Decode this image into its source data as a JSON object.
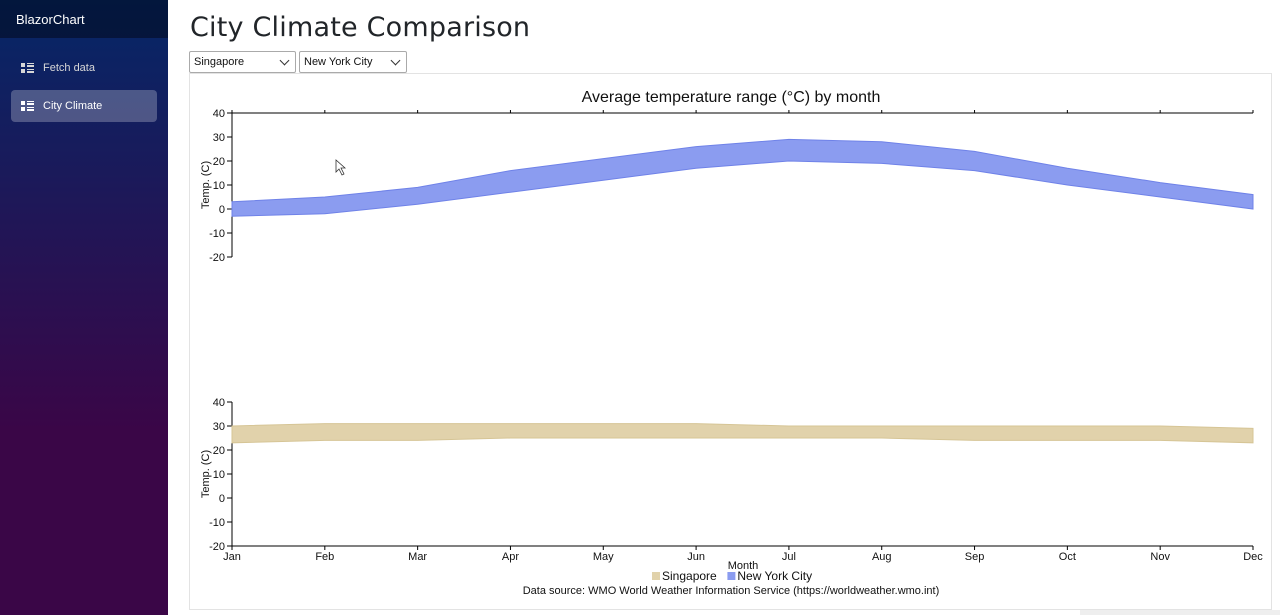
{
  "sidebar": {
    "brand": "BlazorChart",
    "items": [
      {
        "label": "Fetch data",
        "active": false
      },
      {
        "label": "City Climate",
        "active": true
      }
    ]
  },
  "main": {
    "title": "City Climate Comparison",
    "selects": [
      {
        "value": "Singapore"
      },
      {
        "value": "New York City"
      }
    ]
  },
  "chart_data": {
    "type": "area",
    "title": "Average temperature range (°C) by month",
    "xlabel": "Month",
    "ylabel": "Temp. (C)",
    "categories": [
      "Jan",
      "Feb",
      "Mar",
      "Apr",
      "May",
      "Jun",
      "Jul",
      "Aug",
      "Sep",
      "Oct",
      "Nov",
      "Dec"
    ],
    "ylim": [
      -20,
      40
    ],
    "yticks": [
      40,
      30,
      20,
      10,
      0,
      -10,
      -20
    ],
    "grid": false,
    "legend": "bottom-center",
    "source": "Data source: WMO World Weather Information Service (https://worldweather.wmo.int)",
    "series": [
      {
        "name": "New York City",
        "color": "#8b9cf0",
        "stroke": "#6f82e8",
        "low": [
          -3,
          -2,
          2,
          7,
          12,
          17,
          20,
          19,
          16,
          10,
          5,
          0
        ],
        "high": [
          3,
          5,
          9,
          16,
          21,
          26,
          29,
          28,
          24,
          17,
          11,
          6
        ]
      },
      {
        "name": "Singapore",
        "color": "#e1d2ab",
        "stroke": "#d6c596",
        "low": [
          23,
          24,
          24,
          25,
          25,
          25,
          25,
          25,
          24,
          24,
          24,
          23
        ],
        "high": [
          30,
          31,
          31,
          31,
          31,
          31,
          30,
          30,
          30,
          30,
          30,
          29
        ]
      }
    ]
  },
  "colors": {
    "sidebar_top": "#052767",
    "sidebar_bottom": "#3a0647"
  }
}
